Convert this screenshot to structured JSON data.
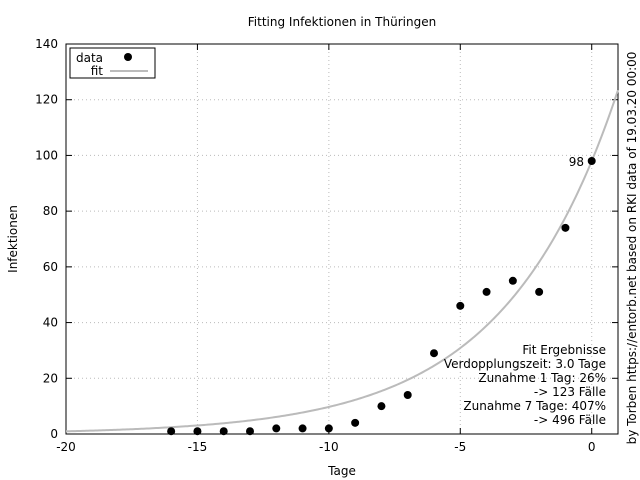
{
  "chart_data": {
    "type": "scatter",
    "title": "Fitting Infektionen in Thüringen",
    "xlabel": "Tage",
    "ylabel": "Infektionen",
    "xlim": [
      -20,
      1
    ],
    "ylim": [
      0,
      140
    ],
    "xticks": [
      -20,
      -15,
      -10,
      -5,
      0
    ],
    "yticks": [
      0,
      20,
      40,
      60,
      80,
      100,
      120,
      140
    ],
    "grid": true,
    "legend_position": "top-left",
    "series": [
      {
        "name": "data",
        "style": "points",
        "color": "#000000",
        "x": [
          -16,
          -15,
          -14,
          -13,
          -12,
          -11,
          -10,
          -9,
          -8,
          -7,
          -6,
          -5,
          -4,
          -3,
          -2,
          -1,
          0
        ],
        "y": [
          1,
          1,
          1,
          1,
          2,
          2,
          2,
          4,
          10,
          14,
          29,
          46,
          51,
          55,
          51,
          74,
          98
        ]
      },
      {
        "name": "fit",
        "style": "line",
        "color": "#bbbbbb",
        "function": "97.5 * 2^(x/3.0)"
      }
    ],
    "point_annotation": {
      "x": 0,
      "y": 98,
      "text": "98"
    },
    "fit_results": [
      "Fit Ergebnisse",
      "Verdopplungszeit: 3.0 Tage",
      "Zunahme 1 Tag: 26%",
      "-> 123 Fälle",
      "Zunahme 7 Tage: 407%",
      "-> 496 Fälle"
    ],
    "source_note": "by Torben https://entorb.net based on RKI data of 19.03.20 00:00"
  }
}
